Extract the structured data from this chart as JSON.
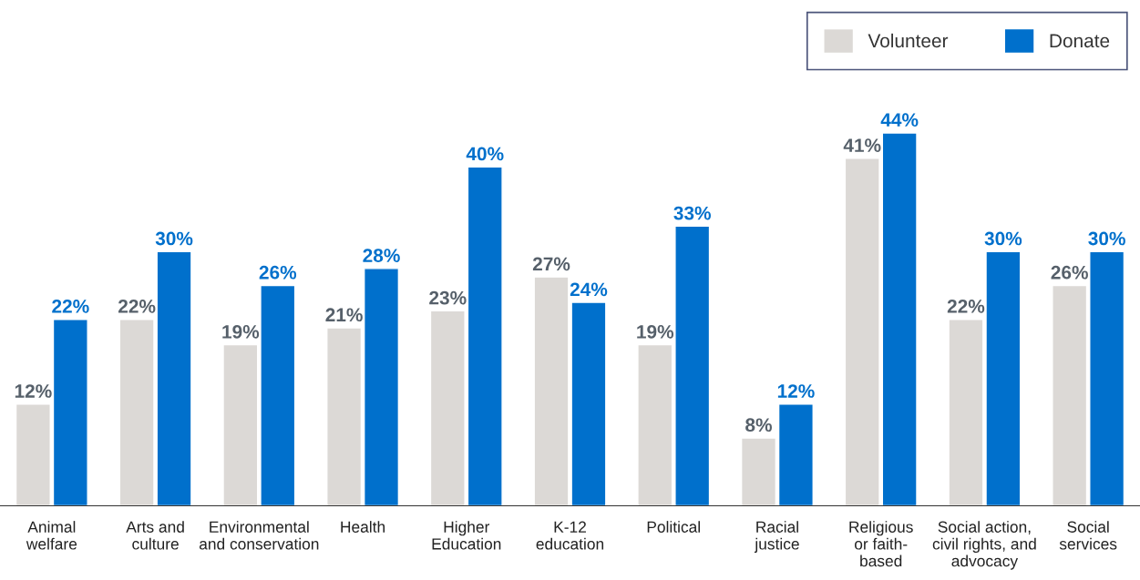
{
  "chart_data": {
    "type": "bar",
    "categories": [
      "Animal\nwelfare",
      "Arts and\nculture",
      "Environmental\nand conservation",
      "Health",
      "Higher\nEducation",
      "K-12\neducation",
      "Political",
      "Racial\njustice",
      "Religious\nor faith-\nbased",
      "Social action,\ncivil rights, and\nadvocacy",
      "Social\nservices"
    ],
    "series": [
      {
        "name": "Volunteer",
        "color": "#dcd9d6",
        "values": [
          12,
          22,
          19,
          21,
          23,
          27,
          19,
          8,
          41,
          22,
          26
        ],
        "value_labels": [
          "12%",
          "22%",
          "19%",
          "21%",
          "23%",
          "27%",
          "19%",
          "8%",
          "41%",
          "22%",
          "26%"
        ]
      },
      {
        "name": "Donate",
        "color": "#0070cc",
        "values": [
          22,
          30,
          26,
          28,
          40,
          24,
          33,
          12,
          44,
          30,
          30
        ],
        "value_labels": [
          "22%",
          "30%",
          "26%",
          "28%",
          "40%",
          "24%",
          "33%",
          "12%",
          "44%",
          "30%",
          "30%"
        ]
      }
    ],
    "legend": "top right",
    "grid": false
  }
}
